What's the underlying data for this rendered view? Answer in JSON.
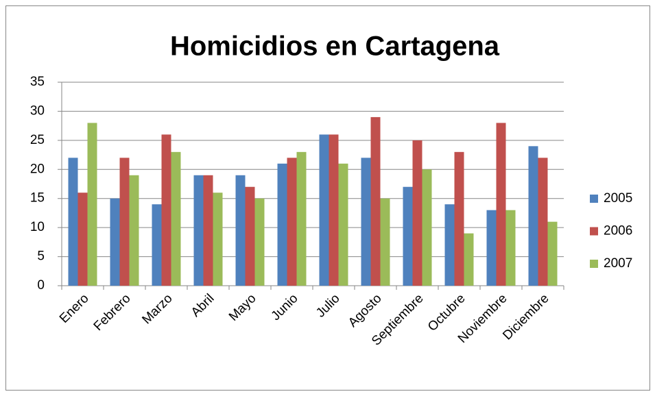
{
  "chart_data": {
    "type": "bar",
    "title": "Homicidios en Cartagena",
    "categories": [
      "Enero",
      "Febrero",
      "Marzo",
      "Abril",
      "Mayo",
      "Junio",
      "Julio",
      "Agosto",
      "Septiembre",
      "Octubre",
      "Noviembre",
      "Diciembre"
    ],
    "series": [
      {
        "name": "2005",
        "color": "#4f81bd",
        "values": [
          22,
          15,
          14,
          19,
          19,
          21,
          26,
          22,
          17,
          14,
          13,
          24
        ]
      },
      {
        "name": "2006",
        "color": "#c0504d",
        "values": [
          16,
          22,
          26,
          19,
          17,
          22,
          26,
          29,
          25,
          23,
          28,
          22
        ]
      },
      {
        "name": "2007",
        "color": "#9bbb59",
        "values": [
          28,
          19,
          23,
          16,
          15,
          23,
          21,
          15,
          20,
          9,
          13,
          11
        ]
      }
    ],
    "ylim": [
      0,
      35
    ],
    "yticks": [
      0,
      5,
      10,
      15,
      20,
      25,
      30,
      35
    ],
    "grid": true,
    "legend": "right"
  }
}
